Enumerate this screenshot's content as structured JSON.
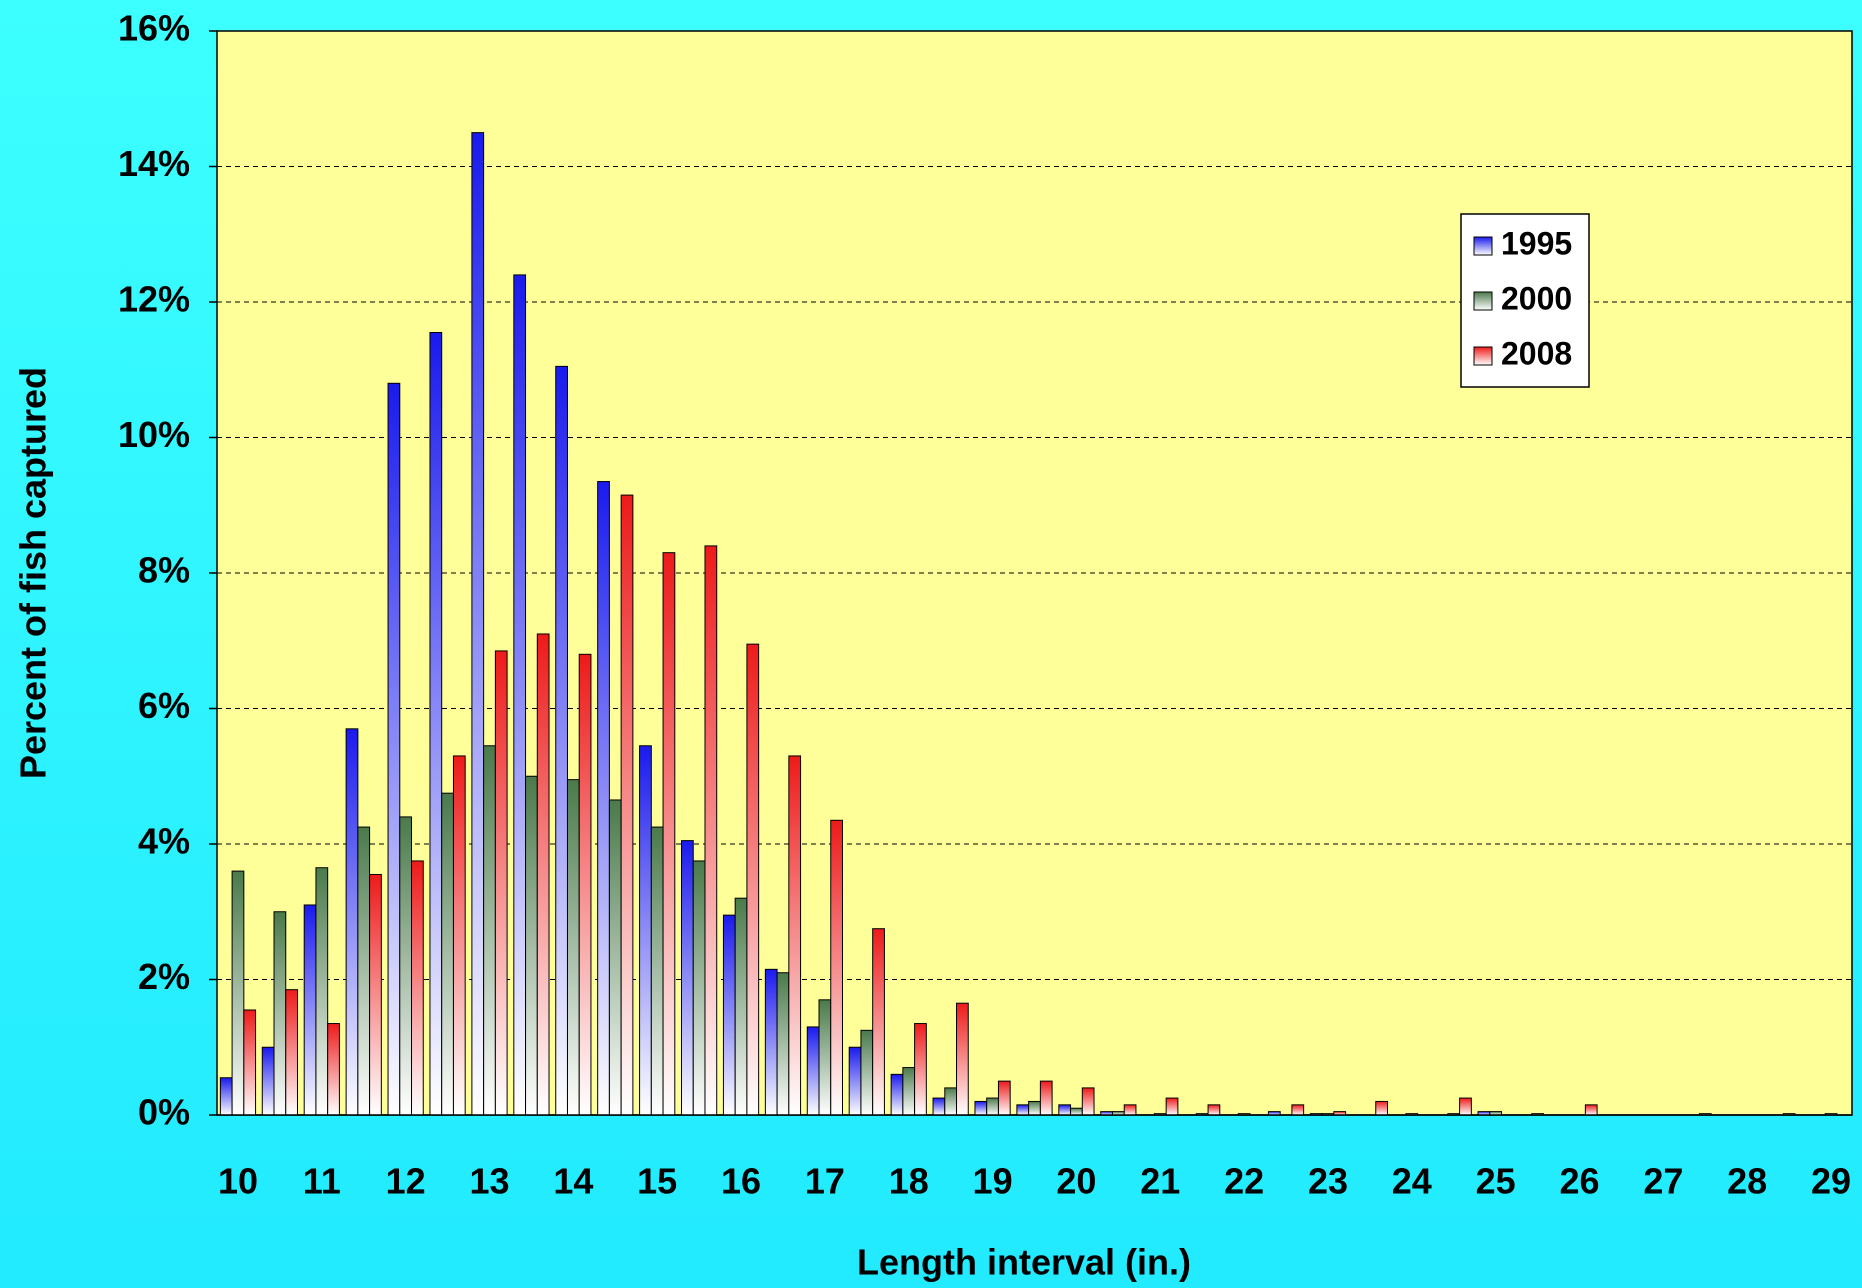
{
  "chart_data": {
    "type": "bar",
    "x_label": "Length interval (in.)",
    "y_label": "Percent of fish captured",
    "categories": [
      "10",
      null,
      "11",
      null,
      "12",
      null,
      "13",
      null,
      "14",
      null,
      "15",
      null,
      "16",
      null,
      "17",
      null,
      "18",
      null,
      "19",
      null,
      "20",
      null,
      "21",
      null,
      "22",
      null,
      "23",
      null,
      "24",
      null,
      "25",
      null,
      "26",
      null,
      "27",
      null,
      "28",
      null,
      "29"
    ],
    "series": [
      {
        "name": "1995",
        "color": "#1a1aee",
        "values": [
          0.55,
          1.0,
          3.1,
          5.7,
          10.8,
          11.55,
          14.5,
          12.4,
          11.05,
          9.35,
          5.45,
          4.05,
          2.95,
          2.15,
          1.3,
          1.0,
          0.6,
          0.25,
          0.2,
          0.15,
          0.15,
          0.05,
          0,
          0,
          0,
          0.05,
          0.02,
          0,
          0,
          0,
          0.05,
          0,
          0,
          0,
          0,
          0,
          0,
          0,
          0
        ]
      },
      {
        "name": "2000",
        "color": "#4a7a4a",
        "values": [
          3.6,
          3.0,
          3.65,
          4.25,
          4.4,
          4.75,
          5.45,
          5.0,
          4.95,
          4.65,
          4.25,
          3.75,
          3.2,
          2.1,
          1.7,
          1.25,
          0.7,
          0.4,
          0.25,
          0.2,
          0.1,
          0.05,
          0.02,
          0.02,
          0.02,
          0,
          0.02,
          0,
          0.02,
          0.02,
          0.05,
          0.02,
          0,
          0,
          0,
          0.02,
          0,
          0.02,
          0.02
        ]
      },
      {
        "name": "2008",
        "color": "#ee1a1a",
        "values": [
          1.55,
          1.85,
          1.35,
          3.55,
          3.75,
          5.3,
          6.85,
          7.1,
          6.8,
          9.15,
          8.3,
          8.4,
          6.95,
          5.3,
          4.35,
          2.75,
          1.35,
          1.65,
          0.5,
          0.5,
          0.4,
          0.15,
          0.25,
          0.15,
          0,
          0.15,
          0.05,
          0.2,
          0,
          0.25,
          0,
          0,
          0.15,
          0,
          0,
          0,
          0,
          0,
          0
        ]
      }
    ],
    "ylim": [
      0,
      16
    ],
    "yticks": [
      {
        "value": 0,
        "label": "0%"
      },
      {
        "value": 2,
        "label": "2%"
      },
      {
        "value": 4,
        "label": "4%"
      },
      {
        "value": 6,
        "label": "6%"
      },
      {
        "value": 8,
        "label": "8%"
      },
      {
        "value": 10,
        "label": "10%"
      },
      {
        "value": 12,
        "label": "12%"
      },
      {
        "value": 14,
        "label": "14%"
      },
      {
        "value": 16,
        "label": "16%"
      }
    ],
    "grid": true,
    "legend": "upper right"
  }
}
